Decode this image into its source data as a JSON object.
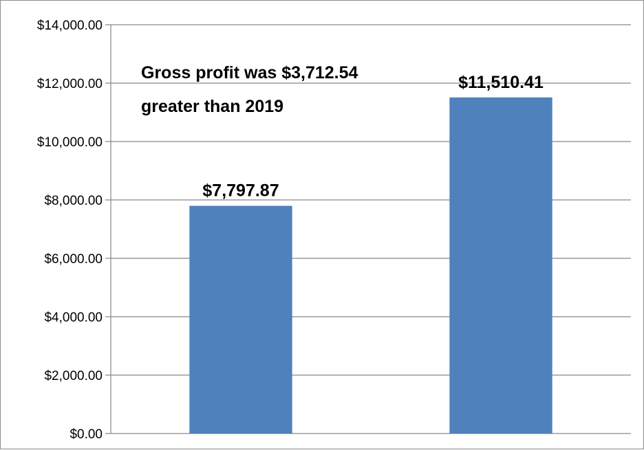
{
  "chart_data": {
    "type": "bar",
    "categories": [
      "",
      ""
    ],
    "values": [
      7797.87,
      11510.41
    ],
    "data_labels": [
      "$7,797.87",
      "$11,510.41"
    ],
    "title": "",
    "xlabel": "",
    "ylabel": "",
    "ylim": [
      0,
      14000
    ],
    "y_ticks": [
      0,
      2000,
      4000,
      6000,
      8000,
      10000,
      12000,
      14000
    ],
    "y_tick_labels": [
      "$0.00",
      "$2,000.00",
      "$4,000.00",
      "$6,000.00",
      "$8,000.00",
      "$10,000.00",
      "$12,000.00",
      "$14,000.00"
    ],
    "grid": true,
    "legend": "none",
    "bar_color": "#4f81bd",
    "gridline_color": "#868686",
    "annotation": {
      "lines": [
        "Gross profit was $3,712.54",
        "greater than 2019"
      ]
    }
  }
}
